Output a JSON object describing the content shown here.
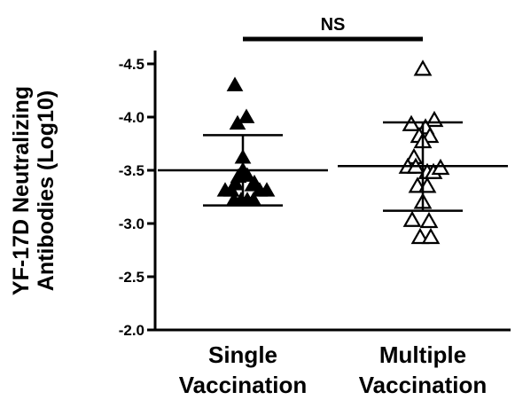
{
  "chart_data": {
    "type": "scatter",
    "ylabel_lines": [
      "YF-17D Neutralizing",
      "Antibodies (Log10)"
    ],
    "yticks": [
      -2.0,
      -2.5,
      -3.0,
      -3.5,
      -4.0,
      -4.5
    ],
    "ytick_labels": [
      "-2.0",
      "-2.5",
      "-3.0",
      "-3.5",
      "-4.0",
      "-4.5"
    ],
    "ylim": [
      -2.0,
      -4.6
    ],
    "y_inverted": true,
    "categories": [
      {
        "lines": [
          "Single",
          "Vaccination"
        ]
      },
      {
        "lines": [
          "Multiple",
          "Vaccination"
        ]
      }
    ],
    "series": [
      {
        "marker": "filled-triangle",
        "color": "#000000",
        "mean": -3.5,
        "sd_upper": -3.83,
        "sd_lower": -3.17,
        "points": [
          {
            "x": -0.09,
            "y": -4.3
          },
          {
            "x": -0.06,
            "y": -3.94
          },
          {
            "x": 0.04,
            "y": -4.0
          },
          {
            "x": 0.0,
            "y": -3.62
          },
          {
            "x": 0.0,
            "y": -3.5
          },
          {
            "x": -0.05,
            "y": -3.44
          },
          {
            "x": 0.05,
            "y": -3.45
          },
          {
            "x": 0.13,
            "y": -3.38
          },
          {
            "x": -0.08,
            "y": -3.37
          },
          {
            "x": 0.11,
            "y": -3.36
          },
          {
            "x": -0.2,
            "y": -3.31
          },
          {
            "x": -0.13,
            "y": -3.31
          },
          {
            "x": 0.19,
            "y": -3.31
          },
          {
            "x": 0.27,
            "y": -3.31
          },
          {
            "x": -0.1,
            "y": -3.22
          },
          {
            "x": -0.02,
            "y": -3.22
          },
          {
            "x": 0.05,
            "y": -3.22
          },
          {
            "x": 0.12,
            "y": -3.22
          }
        ]
      },
      {
        "marker": "open-triangle",
        "color": "#000000",
        "mean": -3.54,
        "sd_upper": -3.95,
        "sd_lower": -3.12,
        "points": [
          {
            "x": 0.0,
            "y": -4.45
          },
          {
            "x": 0.13,
            "y": -3.97
          },
          {
            "x": -0.13,
            "y": -3.93
          },
          {
            "x": 0.03,
            "y": -3.9
          },
          {
            "x": -0.04,
            "y": -3.82
          },
          {
            "x": 0.08,
            "y": -3.82
          },
          {
            "x": 0.0,
            "y": -3.77
          },
          {
            "x": -0.1,
            "y": -3.62
          },
          {
            "x": -0.17,
            "y": -3.53
          },
          {
            "x": -0.08,
            "y": -3.53
          },
          {
            "x": 0.05,
            "y": -3.48
          },
          {
            "x": 0.12,
            "y": -3.48
          },
          {
            "x": 0.2,
            "y": -3.52
          },
          {
            "x": -0.06,
            "y": -3.35
          },
          {
            "x": 0.05,
            "y": -3.35
          },
          {
            "x": 0.0,
            "y": -3.2
          },
          {
            "x": -0.12,
            "y": -3.03
          },
          {
            "x": 0.07,
            "y": -3.02
          },
          {
            "x": -0.03,
            "y": -2.87
          },
          {
            "x": 0.09,
            "y": -2.87
          }
        ]
      }
    ],
    "annotation": {
      "text": "NS",
      "bracket": [
        0,
        1
      ]
    }
  }
}
